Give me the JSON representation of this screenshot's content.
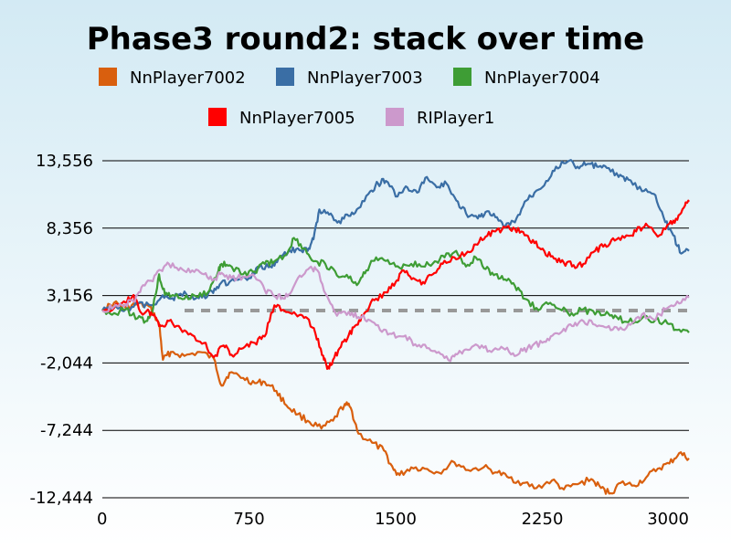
{
  "chart_data": {
    "type": "line",
    "title": "Phase3 round2: stack over time",
    "xlabel": "",
    "ylabel": "",
    "xlim": [
      0,
      3000
    ],
    "ylim": [
      -12444,
      13556
    ],
    "x_ticks": [
      {
        "value": 0,
        "label": "0"
      },
      {
        "value": 750,
        "label": "750"
      },
      {
        "value": 1500,
        "label": "1500"
      },
      {
        "value": 2250,
        "label": "2250"
      },
      {
        "value": 3000,
        "label": "3000"
      }
    ],
    "y_ticks": [
      {
        "value": 13556,
        "label": "13,556"
      },
      {
        "value": 8356,
        "label": "8,356"
      },
      {
        "value": 3156,
        "label": "3,156"
      },
      {
        "value": -2044,
        "label": "-2,044"
      },
      {
        "value": -7244,
        "label": "-7,244"
      },
      {
        "value": -12444,
        "label": "-12,444"
      }
    ],
    "grid": "horizontal",
    "reference_line": {
      "y": 2000,
      "style": "dashed",
      "color": "#999999"
    },
    "legend_position": "top",
    "series": [
      {
        "name": "NnPlayer7002",
        "color": "#d95f0e",
        "x": [
          0,
          60,
          120,
          180,
          240,
          290,
          310,
          350,
          420,
          500,
          570,
          610,
          650,
          720,
          780,
          830,
          890,
          940,
          1000,
          1060,
          1120,
          1180,
          1240,
          1270,
          1310,
          1380,
          1440,
          1490,
          1520,
          1580,
          1650,
          1720,
          1800,
          1870,
          1950,
          2020,
          2080,
          2150,
          2220,
          2300,
          2360,
          2430,
          2500,
          2550,
          2600,
          2650,
          2720,
          2780,
          2840,
          2900,
          2950,
          3000
        ],
        "values": [
          2000,
          2600,
          2200,
          2500,
          2300,
          1000,
          -1800,
          -1200,
          -1500,
          -1200,
          -1700,
          -3800,
          -2800,
          -3200,
          -3600,
          -3500,
          -4200,
          -5300,
          -6000,
          -6600,
          -7100,
          -6500,
          -5200,
          -5500,
          -7500,
          -8200,
          -8800,
          -10300,
          -10700,
          -10100,
          -10200,
          -10500,
          -9700,
          -10300,
          -10100,
          -10500,
          -10900,
          -11300,
          -11700,
          -11100,
          -11800,
          -11400,
          -11000,
          -11700,
          -12100,
          -11300,
          -11500,
          -10900,
          -10200,
          -9800,
          -9000,
          -9400
        ]
      },
      {
        "name": "NnPlayer7003",
        "color": "#3a6ea5",
        "x": [
          0,
          60,
          120,
          180,
          250,
          300,
          350,
          400,
          460,
          510,
          560,
          600,
          650,
          700,
          760,
          800,
          860,
          900,
          950,
          1000,
          1050,
          1080,
          1110,
          1160,
          1210,
          1260,
          1310,
          1370,
          1410,
          1450,
          1510,
          1560,
          1610,
          1660,
          1710,
          1760,
          1810,
          1860,
          1920,
          1960,
          2010,
          2060,
          2110,
          2160,
          2210,
          2270,
          2320,
          2380,
          2430,
          2480,
          2530,
          2580,
          2640,
          2690,
          2760,
          2820,
          2870,
          2920,
          2960,
          3000
        ],
        "values": [
          2000,
          2300,
          2100,
          2500,
          2400,
          3000,
          2900,
          3300,
          3100,
          3000,
          3500,
          4000,
          4200,
          4400,
          4500,
          5300,
          5400,
          6000,
          6500,
          6800,
          6600,
          7500,
          9800,
          9400,
          8900,
          9300,
          9900,
          11200,
          11800,
          12000,
          10800,
          11500,
          11100,
          12300,
          11500,
          11800,
          10500,
          9500,
          9100,
          9600,
          9200,
          8500,
          8800,
          10400,
          11100,
          12000,
          13100,
          13500,
          13100,
          13300,
          13100,
          13000,
          12300,
          12100,
          11200,
          11000,
          9200,
          7800,
          6400,
          6600
        ]
      },
      {
        "name": "NnPlayer7004",
        "color": "#3e9d35",
        "x": [
          0,
          60,
          120,
          180,
          230,
          260,
          290,
          320,
          360,
          420,
          480,
          540,
          590,
          610,
          650,
          720,
          780,
          830,
          880,
          940,
          980,
          1030,
          1080,
          1140,
          1200,
          1260,
          1310,
          1350,
          1400,
          1460,
          1520,
          1580,
          1640,
          1700,
          1750,
          1810,
          1860,
          1910,
          1960,
          2010,
          2060,
          2110,
          2160,
          2220,
          2280,
          2340,
          2400,
          2460,
          2520,
          2580,
          2630,
          2690,
          2760,
          2830,
          2890,
          2940,
          3000
        ],
        "values": [
          2000,
          1800,
          2100,
          1400,
          1200,
          2200,
          4800,
          3200,
          3200,
          2900,
          3100,
          3400,
          4900,
          5600,
          5500,
          4800,
          5000,
          5600,
          5800,
          6300,
          7600,
          6800,
          5800,
          5600,
          4700,
          4500,
          4100,
          5100,
          6100,
          5900,
          5300,
          5600,
          5400,
          5800,
          6100,
          6600,
          5400,
          6100,
          5200,
          4800,
          4400,
          3900,
          2900,
          2200,
          2500,
          2100,
          1800,
          2100,
          1700,
          1900,
          1500,
          1100,
          1400,
          1300,
          1000,
          500,
          300
        ]
      },
      {
        "name": "NnPlayer7005",
        "color": "#ff0000",
        "x": [
          0,
          60,
          120,
          160,
          200,
          240,
          270,
          300,
          340,
          400,
          460,
          520,
          570,
          620,
          660,
          720,
          780,
          830,
          880,
          930,
          990,
          1040,
          1090,
          1130,
          1150,
          1180,
          1220,
          1260,
          1300,
          1340,
          1390,
          1450,
          1500,
          1540,
          1590,
          1640,
          1690,
          1740,
          1800,
          1860,
          1910,
          1960,
          2010,
          2060,
          2110,
          2160,
          2210,
          2260,
          2310,
          2360,
          2410,
          2460,
          2520,
          2570,
          2620,
          2680,
          2730,
          2780,
          2840,
          2900,
          2940,
          2980,
          3000
        ],
        "values": [
          2000,
          2200,
          2600,
          3200,
          1800,
          1900,
          1500,
          800,
          1200,
          600,
          100,
          -500,
          -1600,
          -700,
          -1400,
          -900,
          -500,
          0,
          2400,
          2000,
          1700,
          1500,
          200,
          -1500,
          -2500,
          -1800,
          -800,
          100,
          900,
          1800,
          2800,
          3400,
          4200,
          5100,
          4500,
          4200,
          4800,
          5600,
          6100,
          6400,
          7100,
          7700,
          8100,
          8400,
          8300,
          7800,
          7200,
          6600,
          6000,
          5700,
          5500,
          5600,
          6600,
          7100,
          7400,
          7800,
          8100,
          8700,
          7700,
          8700,
          9000,
          10100,
          10400
        ]
      },
      {
        "name": "RIPlayer1",
        "color": "#cc99cc",
        "x": [
          0,
          60,
          120,
          160,
          200,
          250,
          300,
          340,
          400,
          460,
          520,
          570,
          610,
          660,
          720,
          780,
          830,
          880,
          920,
          960,
          1010,
          1060,
          1100,
          1150,
          1200,
          1260,
          1310,
          1360,
          1420,
          1480,
          1540,
          1600,
          1660,
          1720,
          1780,
          1820,
          1860,
          1920,
          1980,
          2040,
          2100,
          2150,
          2200,
          2260,
          2310,
          2360,
          2410,
          2460,
          2520,
          2580,
          2640,
          2700,
          2760,
          2820,
          2880,
          2940,
          3000
        ],
        "values": [
          2000,
          2300,
          2500,
          2700,
          3800,
          4300,
          5100,
          5600,
          5300,
          5100,
          4800,
          4400,
          4900,
          4500,
          4600,
          4600,
          3600,
          3100,
          3000,
          3300,
          4700,
          5300,
          5100,
          3100,
          1600,
          1900,
          1500,
          1300,
          500,
          200,
          0,
          -600,
          -900,
          -1200,
          -1900,
          -1300,
          -1000,
          -700,
          -1100,
          -800,
          -1300,
          -1100,
          -700,
          -400,
          200,
          600,
          800,
          1200,
          900,
          700,
          500,
          900,
          1700,
          1300,
          2100,
          2700,
          3000
        ]
      }
    ]
  }
}
